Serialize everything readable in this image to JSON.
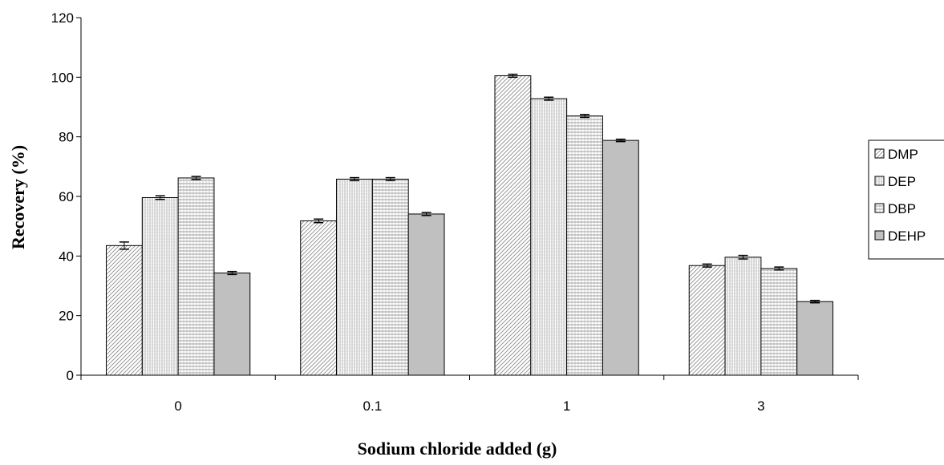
{
  "chart_data": {
    "type": "bar",
    "title": "",
    "xlabel": "Sodium chloride added (g)",
    "ylabel": "Recovery (%)",
    "categories": [
      "0",
      "0.1",
      "1",
      "3"
    ],
    "ylim": [
      0,
      120
    ],
    "yticks": [
      0,
      20,
      40,
      60,
      80,
      100,
      120
    ],
    "grid": false,
    "legend_position": "right",
    "series": [
      {
        "name": "DMP",
        "values": [
          43.5,
          51.8,
          100.5,
          36.8
        ],
        "errors": [
          1.2,
          0.6,
          0.5,
          0.5
        ],
        "pattern": "diagonal"
      },
      {
        "name": "DEP",
        "values": [
          59.6,
          65.8,
          92.8,
          39.6
        ],
        "errors": [
          0.6,
          0.5,
          0.5,
          0.6
        ],
        "pattern": "vertical"
      },
      {
        "name": "DBP",
        "values": [
          66.2,
          65.8,
          87.0,
          35.8
        ],
        "errors": [
          0.5,
          0.5,
          0.5,
          0.5
        ],
        "pattern": "grid"
      },
      {
        "name": "DEHP",
        "values": [
          34.3,
          54.1,
          78.8,
          24.7
        ],
        "errors": [
          0.5,
          0.5,
          0.4,
          0.4
        ],
        "pattern": "solid"
      }
    ],
    "colors": {
      "bar_fill": "#ffffff",
      "solid_fill": "#c0c0c0",
      "hatch": "#7f7f7f",
      "outline": "#000000"
    }
  }
}
